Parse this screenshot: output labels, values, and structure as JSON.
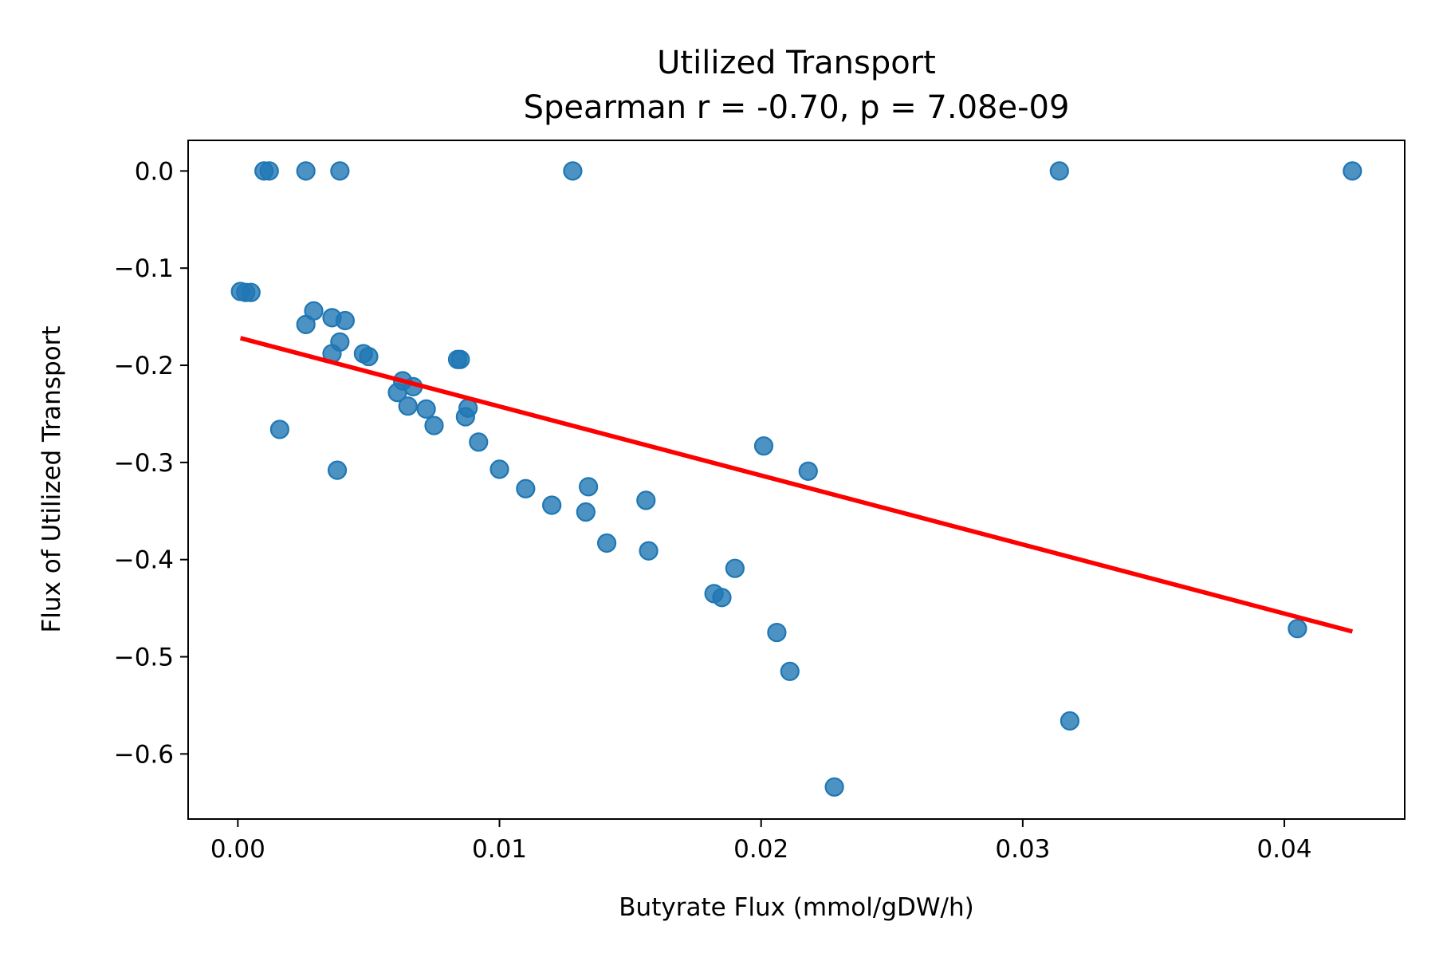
{
  "chart_data": {
    "type": "scatter",
    "title": "Utilized Transport",
    "subtitle": "Spearman r = -0.70, p = 7.08e-09",
    "xlabel": "Butyrate Flux (mmol/gDW/h)",
    "ylabel": "Flux of Utilized Transport",
    "xlim": [
      -0.0019,
      0.0446
    ],
    "ylim": [
      -0.667,
      0.0315
    ],
    "xticks": [
      0.0,
      0.01,
      0.02,
      0.03,
      0.04
    ],
    "xtick_labels": [
      "0.00",
      "0.01",
      "0.02",
      "0.03",
      "0.04"
    ],
    "yticks": [
      0.0,
      -0.1,
      -0.2,
      -0.3,
      -0.4,
      -0.5,
      -0.6
    ],
    "ytick_labels": [
      "0.0",
      "−0.1",
      "−0.2",
      "−0.3",
      "−0.4",
      "−0.5",
      "−0.6"
    ],
    "grid": false,
    "legend": "none",
    "colors": {
      "points": "#1f77b4",
      "fit_line": "#ff0000",
      "axes": "#000000"
    },
    "series": [
      {
        "values": [
          {
            "x": 0.001,
            "y": 0.0
          },
          {
            "x": 0.0012,
            "y": 0.0
          },
          {
            "x": 0.0026,
            "y": 0.0
          },
          {
            "x": 0.0039,
            "y": 0.0
          },
          {
            "x": 0.0128,
            "y": 0.0
          },
          {
            "x": 0.0314,
            "y": 0.0
          },
          {
            "x": 0.0426,
            "y": 0.0
          },
          {
            "x": 0.0001,
            "y": -0.124
          },
          {
            "x": 0.0003,
            "y": -0.125
          },
          {
            "x": 0.0005,
            "y": -0.125
          },
          {
            "x": 0.0026,
            "y": -0.158
          },
          {
            "x": 0.0029,
            "y": -0.144
          },
          {
            "x": 0.0036,
            "y": -0.151
          },
          {
            "x": 0.0041,
            "y": -0.154
          },
          {
            "x": 0.0039,
            "y": -0.176
          },
          {
            "x": 0.0036,
            "y": -0.188
          },
          {
            "x": 0.0048,
            "y": -0.188
          },
          {
            "x": 0.005,
            "y": -0.191
          },
          {
            "x": 0.0016,
            "y": -0.266
          },
          {
            "x": 0.0038,
            "y": -0.308
          },
          {
            "x": 0.0063,
            "y": -0.216
          },
          {
            "x": 0.0067,
            "y": -0.222
          },
          {
            "x": 0.0061,
            "y": -0.228
          },
          {
            "x": 0.0065,
            "y": -0.242
          },
          {
            "x": 0.0072,
            "y": -0.245
          },
          {
            "x": 0.0075,
            "y": -0.262
          },
          {
            "x": 0.0084,
            "y": -0.194
          },
          {
            "x": 0.0085,
            "y": -0.194
          },
          {
            "x": 0.0087,
            "y": -0.253
          },
          {
            "x": 0.0088,
            "y": -0.244
          },
          {
            "x": 0.0092,
            "y": -0.279
          },
          {
            "x": 0.01,
            "y": -0.307
          },
          {
            "x": 0.011,
            "y": -0.327
          },
          {
            "x": 0.012,
            "y": -0.344
          },
          {
            "x": 0.0133,
            "y": -0.351
          },
          {
            "x": 0.0134,
            "y": -0.325
          },
          {
            "x": 0.0141,
            "y": -0.383
          },
          {
            "x": 0.0156,
            "y": -0.339
          },
          {
            "x": 0.0157,
            "y": -0.391
          },
          {
            "x": 0.0182,
            "y": -0.435
          },
          {
            "x": 0.0185,
            "y": -0.439
          },
          {
            "x": 0.019,
            "y": -0.409
          },
          {
            "x": 0.0201,
            "y": -0.283
          },
          {
            "x": 0.0206,
            "y": -0.475
          },
          {
            "x": 0.0211,
            "y": -0.515
          },
          {
            "x": 0.0218,
            "y": -0.309
          },
          {
            "x": 0.0228,
            "y": -0.634
          },
          {
            "x": 0.0318,
            "y": -0.566
          },
          {
            "x": 0.0405,
            "y": -0.471
          }
        ]
      }
    ],
    "fit_line": {
      "x": [
        0.0001,
        0.0426
      ],
      "y": [
        -0.172,
        -0.474
      ]
    }
  }
}
